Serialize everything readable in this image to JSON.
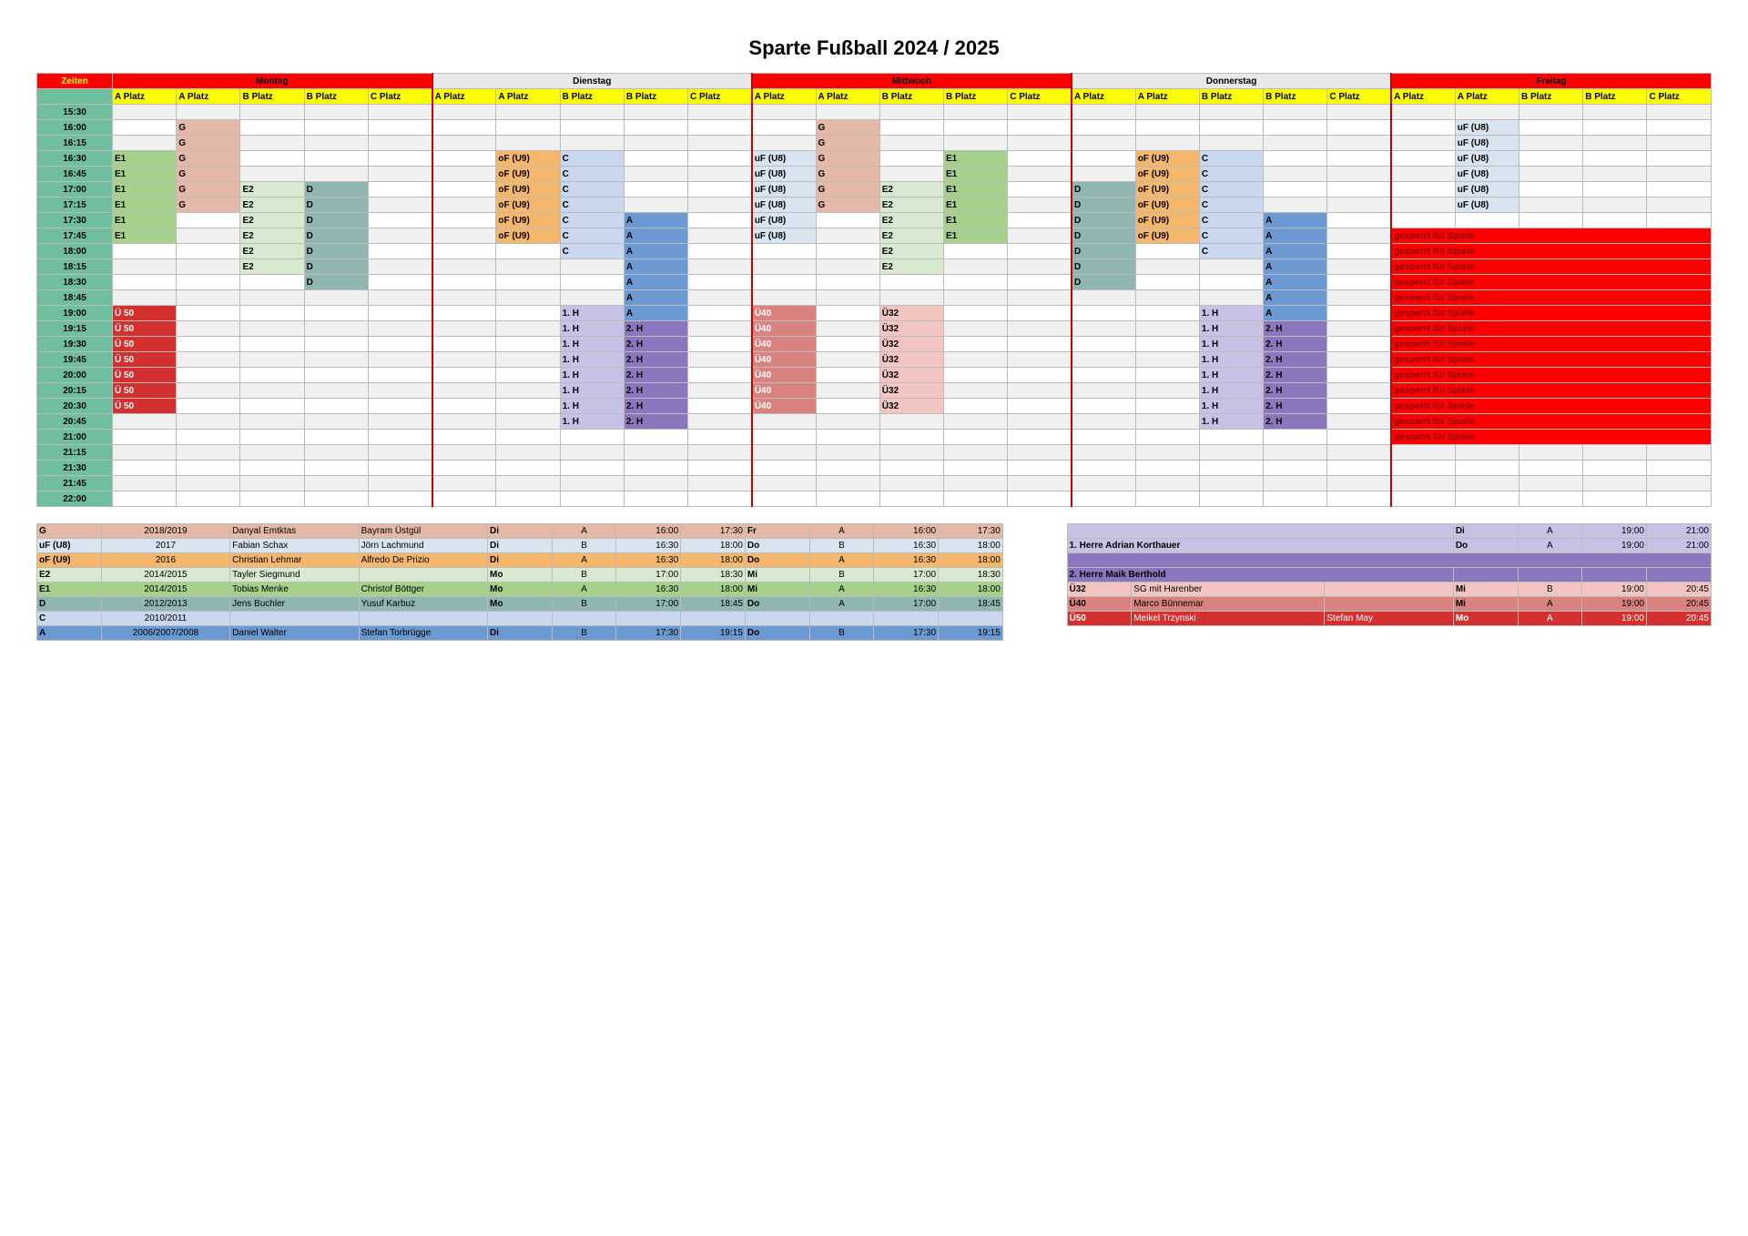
{
  "title": "Sparte Fußball 2024 / 2025",
  "days": [
    "Montag",
    "Dienstag",
    "Mittwoch",
    "Donnerstag",
    "Freitag"
  ],
  "platz_labels": [
    "A Platz",
    "A Platz",
    "B Platz",
    "B Platz",
    "C Platz"
  ],
  "zeiten_label": "Zeiten",
  "times": [
    "15:30",
    "16:00",
    "16:15",
    "16:30",
    "16:45",
    "17:00",
    "17:15",
    "17:30",
    "17:45",
    "18:00",
    "18:15",
    "18:30",
    "18:45",
    "19:00",
    "19:15",
    "19:30",
    "19:45",
    "20:00",
    "20:15",
    "20:30",
    "20:45",
    "21:00",
    "21:15",
    "21:30",
    "21:45",
    "22:00"
  ],
  "colors": {
    "zeiten_header": "#ff0000",
    "zeiten_text": "#ffff00",
    "day_red": "#ff0000",
    "day_red_text": "#000000",
    "day_grey": "#e8e8e8",
    "platz_yellow": "#ffff00",
    "time_teal": "#6fbf9f",
    "grey_alt": "#f0f0f0",
    "white": "#ffffff",
    "G": "#e5b9a8",
    "E1": "#a5d18a",
    "E2": "#d7ead0",
    "D": "#8fb6b0",
    "oF": "#f5b76c",
    "uF": "#d8e4f0",
    "C": "#c9d8ef",
    "A": "#6b99d1",
    "H1": "#c6c2e6",
    "H2": "#8b76bd",
    "U40": "#d9827f",
    "U32": "#f3c5c0",
    "U50": "#d43030",
    "sperr": "#ff0000",
    "sperr_text": "#8b0000",
    "legend_G": "#e5b9a8",
    "legend_uF": "#d8e4f0",
    "legend_oF": "#f5b76c",
    "legend_E2": "#d7ead0",
    "legend_E1": "#a5d18a",
    "legend_D": "#8fb6b0",
    "legend_C": "#c9d8ef",
    "legend_A": "#6b99d1",
    "legend_H1": "#c6c2e6",
    "legend_H2": "#8b76bd",
    "legend_U32": "#f3c5c0",
    "legend_U40": "#d9827f",
    "legend_U50": "#d43030"
  },
  "schedule": {
    "16:00": {
      "mo": [
        null,
        "G",
        null,
        null,
        null
      ],
      "di": [
        null,
        null,
        null,
        null,
        null
      ],
      "mi": [
        null,
        "G",
        null,
        null,
        null
      ],
      "do": [
        null,
        null,
        null,
        null,
        null
      ],
      "fr": [
        null,
        "uF (U8)",
        null,
        null,
        null
      ]
    },
    "16:15": {
      "mo": [
        null,
        "G",
        null,
        null,
        null
      ],
      "di": [
        null,
        null,
        null,
        null,
        null
      ],
      "mi": [
        null,
        "G",
        null,
        null,
        null
      ],
      "do": [
        null,
        null,
        null,
        null,
        null
      ],
      "fr": [
        null,
        "uF (U8)",
        null,
        null,
        null
      ]
    },
    "16:30": {
      "mo": [
        "E1",
        "G",
        null,
        null,
        null
      ],
      "di": [
        null,
        "oF (U9)",
        "C",
        null,
        null
      ],
      "mi": [
        "uF (U8)",
        "G",
        null,
        "E1",
        null
      ],
      "do": [
        null,
        "oF (U9)",
        "C",
        null,
        null
      ],
      "fr": [
        null,
        "uF (U8)",
        null,
        null,
        null
      ]
    },
    "16:45": {
      "mo": [
        "E1",
        "G",
        null,
        null,
        null
      ],
      "di": [
        null,
        "oF (U9)",
        "C",
        null,
        null
      ],
      "mi": [
        "uF (U8)",
        "G",
        null,
        "E1",
        null
      ],
      "do": [
        null,
        "oF (U9)",
        "C",
        null,
        null
      ],
      "fr": [
        null,
        "uF (U8)",
        null,
        null,
        null
      ]
    },
    "17:00": {
      "mo": [
        "E1",
        "G",
        "E2",
        "D",
        null
      ],
      "di": [
        null,
        "oF (U9)",
        "C",
        null,
        null
      ],
      "mi": [
        "uF (U8)",
        "G",
        "E2",
        "E1",
        null
      ],
      "do": [
        "D",
        "oF (U9)",
        "C",
        null,
        null
      ],
      "fr": [
        null,
        "uF (U8)",
        null,
        null,
        null
      ]
    },
    "17:15": {
      "mo": [
        "E1",
        "G",
        "E2",
        "D",
        null
      ],
      "di": [
        null,
        "oF (U9)",
        "C",
        null,
        null
      ],
      "mi": [
        "uF (U8)",
        "G",
        "E2",
        "E1",
        null
      ],
      "do": [
        "D",
        "oF (U9)",
        "C",
        null,
        null
      ],
      "fr": [
        null,
        "uF (U8)",
        null,
        null,
        null
      ]
    },
    "17:30": {
      "mo": [
        "E1",
        null,
        "E2",
        "D",
        null
      ],
      "di": [
        null,
        "oF (U9)",
        "C",
        "A",
        null
      ],
      "mi": [
        "uF (U8)",
        null,
        "E2",
        "E1",
        null
      ],
      "do": [
        "D",
        "oF (U9)",
        "C",
        "A",
        null
      ],
      "fr": [
        null,
        null,
        null,
        null,
        null
      ]
    },
    "17:45": {
      "mo": [
        "E1",
        null,
        "E2",
        "D",
        null
      ],
      "di": [
        null,
        "oF (U9)",
        "C",
        "A",
        null
      ],
      "mi": [
        "uF (U8)",
        null,
        "E2",
        "E1",
        null
      ],
      "do": [
        "D",
        "oF (U9)",
        "C",
        "A",
        null
      ],
      "fr": [
        "gesperrt für Spiele",
        null,
        null,
        null,
        null
      ]
    },
    "18:00": {
      "mo": [
        null,
        null,
        "E2",
        "D",
        null
      ],
      "di": [
        null,
        null,
        "C",
        "A",
        null
      ],
      "mi": [
        null,
        null,
        "E2",
        null,
        null
      ],
      "do": [
        "D",
        null,
        "C",
        "A",
        null
      ],
      "fr": [
        "gesperrt für Spiele",
        null,
        null,
        null,
        null
      ]
    },
    "18:15": {
      "mo": [
        null,
        null,
        "E2",
        "D",
        null
      ],
      "di": [
        null,
        null,
        null,
        "A",
        null
      ],
      "mi": [
        null,
        null,
        "E2",
        null,
        null
      ],
      "do": [
        "D",
        null,
        null,
        "A",
        null
      ],
      "fr": [
        "gesperrt für Spiele",
        null,
        null,
        null,
        null
      ]
    },
    "18:30": {
      "mo": [
        null,
        null,
        null,
        "D",
        null
      ],
      "di": [
        null,
        null,
        null,
        "A",
        null
      ],
      "mi": [
        null,
        null,
        null,
        null,
        null
      ],
      "do": [
        "D",
        null,
        null,
        "A",
        null
      ],
      "fr": [
        "gesperrt für Spiele",
        null,
        null,
        null,
        null
      ]
    },
    "18:45": {
      "mo": [
        null,
        null,
        null,
        null,
        null
      ],
      "di": [
        null,
        null,
        null,
        "A",
        null
      ],
      "mi": [
        null,
        null,
        null,
        null,
        null
      ],
      "do": [
        null,
        null,
        null,
        "A",
        null
      ],
      "fr": [
        "gesperrt für Spiele",
        null,
        null,
        null,
        null
      ]
    },
    "19:00": {
      "mo": [
        "Ü 50",
        null,
        null,
        null,
        null
      ],
      "di": [
        null,
        null,
        "1. H",
        "A",
        null
      ],
      "mi": [
        "Ü40",
        null,
        "Ü32",
        null,
        null
      ],
      "do": [
        null,
        null,
        "1. H",
        "A",
        null
      ],
      "fr": [
        "gesperrt für Spiele",
        null,
        null,
        null,
        null
      ]
    },
    "19:15": {
      "mo": [
        "Ü 50",
        null,
        null,
        null,
        null
      ],
      "di": [
        null,
        null,
        "1. H",
        "2. H",
        null
      ],
      "mi": [
        "Ü40",
        null,
        "Ü32",
        null,
        null
      ],
      "do": [
        null,
        null,
        "1. H",
        "2. H",
        null
      ],
      "fr": [
        "gesperrt für Spiele",
        null,
        null,
        null,
        null
      ]
    },
    "19:30": {
      "mo": [
        "Ü 50",
        null,
        null,
        null,
        null
      ],
      "di": [
        null,
        null,
        "1. H",
        "2. H",
        null
      ],
      "mi": [
        "Ü40",
        null,
        "Ü32",
        null,
        null
      ],
      "do": [
        null,
        null,
        "1. H",
        "2. H",
        null
      ],
      "fr": [
        "gesperrt für Spiele",
        null,
        null,
        null,
        null
      ]
    },
    "19:45": {
      "mo": [
        "Ü 50",
        null,
        null,
        null,
        null
      ],
      "di": [
        null,
        null,
        "1. H",
        "2. H",
        null
      ],
      "mi": [
        "Ü40",
        null,
        "Ü32",
        null,
        null
      ],
      "do": [
        null,
        null,
        "1. H",
        "2. H",
        null
      ],
      "fr": [
        "gesperrt für Spiele",
        null,
        null,
        null,
        null
      ]
    },
    "20:00": {
      "mo": [
        "Ü 50",
        null,
        null,
        null,
        null
      ],
      "di": [
        null,
        null,
        "1. H",
        "2. H",
        null
      ],
      "mi": [
        "Ü40",
        null,
        "Ü32",
        null,
        null
      ],
      "do": [
        null,
        null,
        "1. H",
        "2. H",
        null
      ],
      "fr": [
        "gesperrt für Spiele",
        null,
        null,
        null,
        null
      ]
    },
    "20:15": {
      "mo": [
        "Ü 50",
        null,
        null,
        null,
        null
      ],
      "di": [
        null,
        null,
        "1. H",
        "2. H",
        null
      ],
      "mi": [
        "Ü40",
        null,
        "Ü32",
        null,
        null
      ],
      "do": [
        null,
        null,
        "1. H",
        "2. H",
        null
      ],
      "fr": [
        "gesperrt für Spiele",
        null,
        null,
        null,
        null
      ]
    },
    "20:30": {
      "mo": [
        "Ü 50",
        null,
        null,
        null,
        null
      ],
      "di": [
        null,
        null,
        "1. H",
        "2. H",
        null
      ],
      "mi": [
        "Ü40",
        null,
        "Ü32",
        null,
        null
      ],
      "do": [
        null,
        null,
        "1. H",
        "2. H",
        null
      ],
      "fr": [
        "gesperrt für Spiele",
        null,
        null,
        null,
        null
      ]
    },
    "20:45": {
      "mo": [
        null,
        null,
        null,
        null,
        null
      ],
      "di": [
        null,
        null,
        "1. H",
        "2. H",
        null
      ],
      "mi": [
        null,
        null,
        null,
        null,
        null
      ],
      "do": [
        null,
        null,
        "1. H",
        "2. H",
        null
      ],
      "fr": [
        "gesperrt für Spiele",
        null,
        null,
        null,
        null
      ]
    },
    "21:00": {
      "mo": [
        null,
        null,
        null,
        null,
        null
      ],
      "di": [
        null,
        null,
        null,
        null,
        null
      ],
      "mi": [
        null,
        null,
        null,
        null,
        null
      ],
      "do": [
        null,
        null,
        null,
        null,
        null
      ],
      "fr": [
        "gesperrt für Spiele",
        null,
        null,
        null,
        null
      ]
    }
  },
  "cell_colors": {
    "G": "G",
    "E1": "E1",
    "E2": "E2",
    "D": "D",
    "oF (U9)": "oF",
    "uF (U8)": "uF",
    "C": "C",
    "A": "A",
    "1. H": "H1",
    "2. H": "H2",
    "Ü40": "U40",
    "Ü32": "U32",
    "Ü 50": "U50",
    "gesperrt für Spiele": "sperr"
  },
  "legend": [
    {
      "code": "G",
      "year": "2018/2019",
      "c1": "Danyal Emtktas",
      "c2": "Bayram Üstgül",
      "d1": "Di",
      "p1": "A",
      "t1a": "16:00",
      "t1b": "17:30",
      "d2": "Fr",
      "p2": "A",
      "t2a": "16:00",
      "t2b": "17:30",
      "bg": "legend_G"
    },
    {
      "code": "uF (U8)",
      "year": "2017",
      "c1": "Fabian Schax",
      "c2": "Jörn Lachmund",
      "d1": "Di",
      "p1": "B",
      "t1a": "16:30",
      "t1b": "18:00",
      "d2": "Do",
      "p2": "B",
      "t2a": "16:30",
      "t2b": "18:00",
      "bg": "legend_uF"
    },
    {
      "code": "oF (U9)",
      "year": "2016",
      "c1": "Christian Lehmar",
      "c2": "Alfredo De Prizio",
      "d1": "Di",
      "p1": "A",
      "t1a": "16:30",
      "t1b": "18:00",
      "d2": "Do",
      "p2": "A",
      "t2a": "16:30",
      "t2b": "18:00",
      "bg": "legend_oF"
    },
    {
      "code": "E2",
      "year": "2014/2015",
      "c1": "Tayler Siegmund",
      "c2": "",
      "d1": "Mo",
      "p1": "B",
      "t1a": "17:00",
      "t1b": "18:30",
      "d2": "Mi",
      "p2": "B",
      "t2a": "17:00",
      "t2b": "18:30",
      "bg": "legend_E2"
    },
    {
      "code": "E1",
      "year": "2014/2015",
      "c1": "Tobias Menke",
      "c2": "Christof Böttger",
      "d1": "Mo",
      "p1": "A",
      "t1a": "16:30",
      "t1b": "18:00",
      "d2": "Mi",
      "p2": "A",
      "t2a": "16:30",
      "t2b": "18:00",
      "bg": "legend_E1"
    },
    {
      "code": "D",
      "year": "2012/2013",
      "c1": "Jens Buchler",
      "c2": "Yusuf Karbuz",
      "d1": "Mo",
      "p1": "B",
      "t1a": "17:00",
      "t1b": "18:45",
      "d2": "Do",
      "p2": "A",
      "t2a": "17:00",
      "t2b": "18:45",
      "bg": "legend_D"
    },
    {
      "code": "C",
      "year": "2010/2011",
      "c1": "",
      "c2": "",
      "d1": "",
      "p1": "",
      "t1a": "",
      "t1b": "",
      "d2": "",
      "p2": "",
      "t2a": "",
      "t2b": "",
      "bg": "legend_C"
    },
    {
      "code": "A",
      "year": "2006/2007/2008",
      "c1": "Daniel Walter",
      "c2": "Stefan Torbrügge",
      "d1": "Di",
      "p1": "B",
      "t1a": "17:30",
      "t1b": "19:15",
      "d2": "Do",
      "p2": "B",
      "t2a": "17:30",
      "t2b": "19:15",
      "bg": "legend_A"
    }
  ],
  "legend2": [
    {
      "row": 0,
      "d1": "Di",
      "p1": "A",
      "t1a": "19:00",
      "t1b": "21:00",
      "bg": "legend_H1"
    },
    {
      "label": "1. Herre Adrian Korthauer",
      "d1": "Do",
      "p1": "A",
      "t1a": "19:00",
      "t1b": "21:00",
      "bg": "legend_H1"
    },
    {
      "label": "",
      "bg": "legend_H2",
      "blank": true
    },
    {
      "label": "2. Herre Maik Berthold",
      "bg": "legend_H2"
    },
    {
      "code": "Ü32",
      "label": "SG mit Harenber",
      "d1": "Mi",
      "p1": "B",
      "t1a": "19:00",
      "t1b": "20:45",
      "bg": "legend_U32"
    },
    {
      "code": "Ü40",
      "label": "Marco Bünnemar",
      "d1": "Mi",
      "p1": "A",
      "t1a": "19:00",
      "t1b": "20:45",
      "bg": "legend_U40"
    },
    {
      "code": "Ü50",
      "label": "Meikel Trzynski",
      "label2": "Stefan May",
      "d1": "Mo",
      "p1": "A",
      "t1a": "19:00",
      "t1b": "20:45",
      "bg": "legend_U50",
      "textcolor": "#ffffff"
    }
  ]
}
